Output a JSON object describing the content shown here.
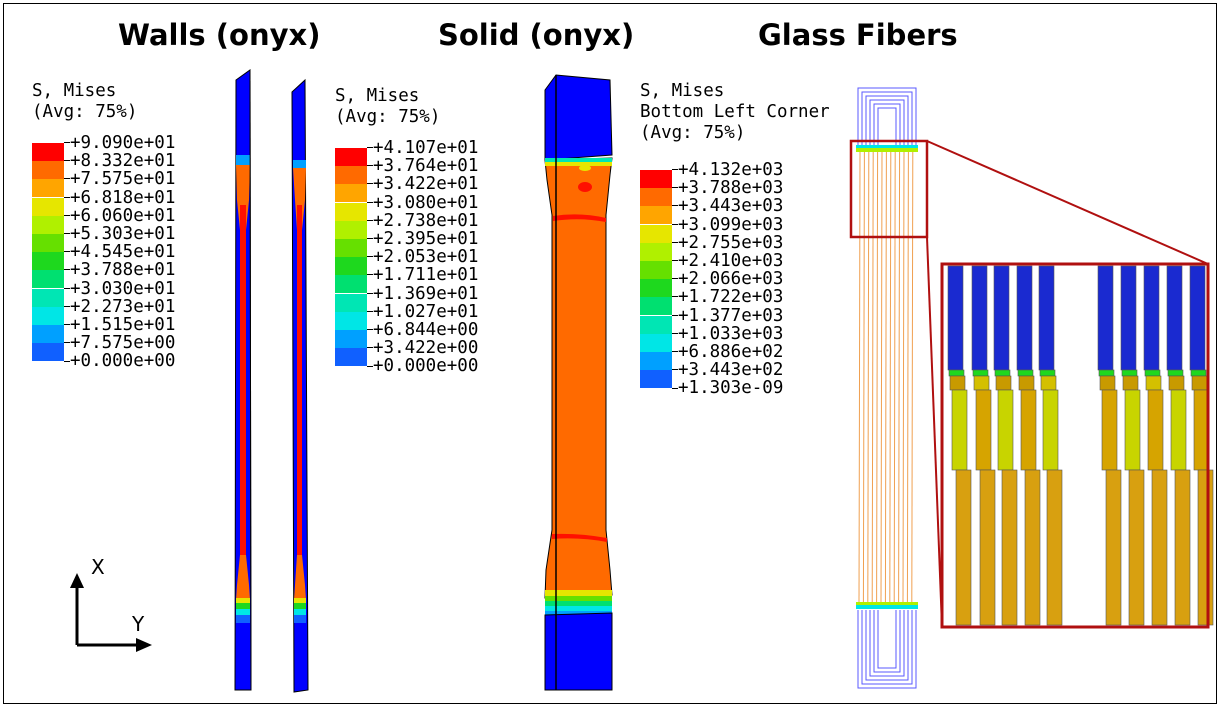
{
  "titles": {
    "walls": "Walls (onyx)",
    "solid": "Solid (onyx)",
    "glass": "Glass Fibers"
  },
  "legends": {
    "walls": {
      "header": [
        "S, Mises",
        "(Avg: 75%)"
      ],
      "values": [
        "+9.090e+01",
        "+8.332e+01",
        "+7.575e+01",
        "+6.818e+01",
        "+6.060e+01",
        "+5.303e+01",
        "+4.545e+01",
        "+3.788e+01",
        "+3.030e+01",
        "+2.273e+01",
        "+1.515e+01",
        "+7.575e+00",
        "+0.000e+00"
      ]
    },
    "solid": {
      "header": [
        "S, Mises",
        "(Avg: 75%)"
      ],
      "values": [
        "+4.107e+01",
        "+3.764e+01",
        "+3.422e+01",
        "+3.080e+01",
        "+2.738e+01",
        "+2.395e+01",
        "+2.053e+01",
        "+1.711e+01",
        "+1.369e+01",
        "+1.027e+01",
        "+6.844e+00",
        "+3.422e+00",
        "+0.000e+00"
      ]
    },
    "glass": {
      "header": [
        "S, Mises",
        "Bottom Left Corner",
        "(Avg: 75%)"
      ],
      "values": [
        "+4.132e+03",
        "+3.788e+03",
        "+3.443e+03",
        "+3.099e+03",
        "+2.755e+03",
        "+2.410e+03",
        "+2.066e+03",
        "+1.722e+03",
        "+1.377e+03",
        "+1.033e+03",
        "+6.886e+02",
        "+3.443e+02",
        "+1.303e-09"
      ]
    }
  },
  "colormap": [
    "#ff0000",
    "#ff6a00",
    "#ffa500",
    "#e6e600",
    "#b0f000",
    "#66e000",
    "#1ed81e",
    "#00e070",
    "#00e6b4",
    "#00e6e6",
    "#00a0ff",
    "#1060ff",
    "#0000ff"
  ],
  "axes": {
    "x_label": "X",
    "y_label": "Y"
  }
}
